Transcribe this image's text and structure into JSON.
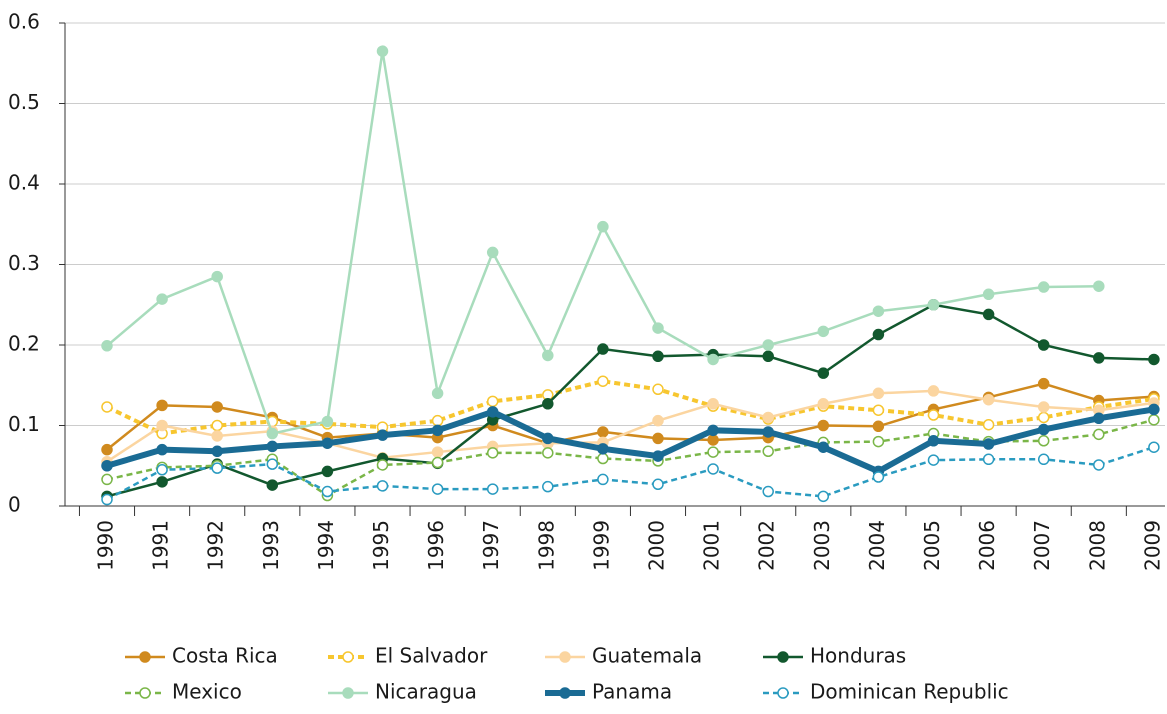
{
  "chart_data": {
    "type": "line",
    "categories": [
      "1990",
      "1991",
      "1992",
      "1993",
      "1994",
      "1995",
      "1996",
      "1997",
      "1998",
      "1999",
      "2000",
      "2001",
      "2002",
      "2003",
      "2004",
      "2005",
      "2006",
      "2007",
      "2008",
      "2009"
    ],
    "ylim": [
      0,
      0.6
    ],
    "yticks": [
      0,
      0.1,
      0.2,
      0.3,
      0.4,
      0.5,
      0.6
    ],
    "grid": true,
    "series": [
      {
        "name": "Costa Rica",
        "color": "#d08a1e",
        "marker": "filled",
        "dashed": false,
        "thick": false,
        "values": [
          0.07,
          0.125,
          0.123,
          0.11,
          0.085,
          0.09,
          0.085,
          0.1,
          0.078,
          0.092,
          0.084,
          0.082,
          0.085,
          0.1,
          0.099,
          0.12,
          0.135,
          0.152,
          0.131,
          0.136
        ]
      },
      {
        "name": "El Salvador",
        "color": "#f7c62f",
        "marker": "hollow",
        "dashed": true,
        "thick": true,
        "values": [
          0.123,
          0.09,
          0.1,
          0.105,
          0.102,
          0.098,
          0.106,
          0.13,
          0.138,
          0.155,
          0.145,
          0.124,
          0.108,
          0.124,
          0.119,
          0.113,
          0.101,
          0.11,
          0.123,
          0.133
        ]
      },
      {
        "name": "Guatemala",
        "color": "#fbd5a0",
        "marker": "filled",
        "dashed": false,
        "thick": false,
        "values": [
          0.055,
          0.1,
          0.087,
          0.093,
          0.078,
          0.06,
          0.067,
          0.074,
          0.078,
          0.079,
          0.106,
          0.127,
          0.11,
          0.127,
          0.14,
          0.143,
          0.132,
          0.123,
          0.119,
          0.128
        ]
      },
      {
        "name": "Honduras",
        "color": "#12582e",
        "marker": "filled",
        "dashed": false,
        "thick": false,
        "values": [
          0.012,
          0.03,
          0.052,
          0.026,
          0.043,
          0.059,
          0.053,
          0.107,
          0.127,
          0.195,
          0.186,
          0.188,
          0.186,
          0.165,
          0.213,
          0.25,
          0.238,
          0.2,
          0.184,
          0.182
        ]
      },
      {
        "name": "Mexico",
        "color": "#7ab648",
        "marker": "hollow",
        "dashed": true,
        "thick": false,
        "values": [
          0.033,
          0.048,
          0.05,
          0.058,
          0.013,
          0.051,
          0.054,
          0.066,
          0.066,
          0.059,
          0.056,
          0.067,
          0.068,
          0.079,
          0.08,
          0.09,
          0.08,
          0.081,
          0.089,
          0.107
        ]
      },
      {
        "name": "Nicaragua",
        "color": "#a8dcbc",
        "marker": "filled",
        "dashed": false,
        "thick": false,
        "values": [
          0.199,
          0.257,
          0.285,
          0.09,
          0.105,
          0.565,
          0.14,
          0.315,
          0.187,
          0.347,
          0.221,
          0.182,
          0.2,
          0.217,
          0.242,
          0.25,
          0.263,
          0.272,
          0.273,
          null
        ]
      },
      {
        "name": "Panama",
        "color": "#1a6b94",
        "marker": "filled",
        "dashed": false,
        "thick": true,
        "values": [
          0.05,
          0.07,
          0.068,
          0.074,
          0.078,
          0.088,
          0.094,
          0.117,
          0.084,
          0.071,
          0.062,
          0.094,
          0.092,
          0.073,
          0.043,
          0.081,
          0.077,
          0.095,
          0.109,
          0.12
        ]
      },
      {
        "name": "Dominican Republic",
        "color": "#2a9bc0",
        "marker": "hollow",
        "dashed": true,
        "thick": false,
        "values": [
          0.008,
          0.045,
          0.047,
          0.052,
          0.018,
          0.025,
          0.021,
          0.021,
          0.024,
          0.033,
          0.027,
          0.046,
          0.018,
          0.012,
          0.036,
          0.057,
          0.058,
          0.058,
          0.051,
          0.073
        ]
      }
    ]
  }
}
